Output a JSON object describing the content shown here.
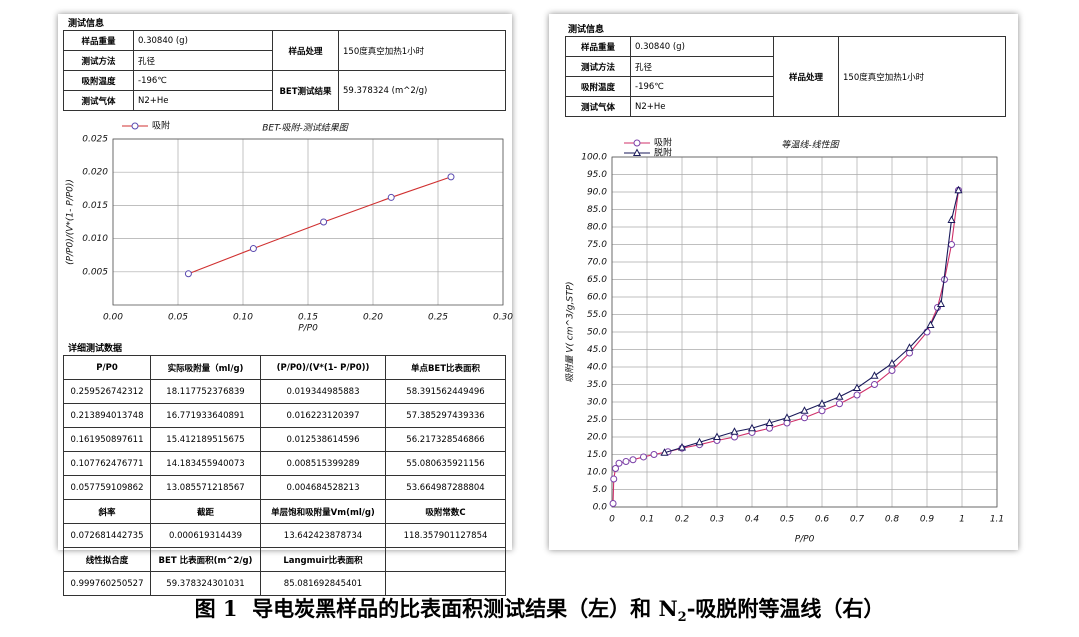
{
  "left_info": {
    "title": "测试信息",
    "rows": [
      [
        "样品重量",
        "0.30840 (g)"
      ],
      [
        "测试方法",
        "孔径"
      ],
      [
        "吸附温度",
        "-196℃"
      ],
      [
        "测试气体",
        "N2+He"
      ]
    ],
    "treatment_label": "样品处理",
    "treatment": "150度真空加热1小时",
    "bet_label": "BET测试结果",
    "bet": "59.378324 (m^2/g)"
  },
  "detail": {
    "title": "详细测试数据",
    "header": [
      "P/P0",
      "实际吸附量（ml/g)",
      "(P/P0)/(V*(1- P/P0))",
      "单点BET比表面积"
    ],
    "rows": [
      [
        "0.259526742312",
        "18.117752376839",
        "0.019344985883",
        "58.391562449496"
      ],
      [
        "0.213894013748",
        "16.771933640891",
        "0.016223120397",
        "57.385297439336"
      ],
      [
        "0.161950897611",
        "15.412189515675",
        "0.012538614596",
        "56.217328546866"
      ],
      [
        "0.107762476771",
        "14.183455940073",
        "0.008515399289",
        "55.080635921156"
      ],
      [
        "0.057759109862",
        "13.085571218567",
        "0.004684528213",
        "53.664987288804"
      ]
    ],
    "summary": [
      [
        "斜率",
        "截距",
        "单层饱和吸附量Vm(ml/g)",
        "吸附常数C"
      ],
      [
        "0.072681442735",
        "0.000619314439",
        "13.642423878734",
        "118.357901127854"
      ],
      [
        "线性拟合度",
        "BET 比表面积(m^2/g)",
        "Langmuir比表面积"
      ],
      [
        "0.999760250527",
        "59.378324301031",
        "85.081692845401"
      ]
    ]
  },
  "right_info": {
    "title": "测试信息",
    "rows": [
      [
        "样品重量",
        "0.30840 (g)"
      ],
      [
        "测试方法",
        "孔径"
      ],
      [
        "吸附温度",
        "-196℃"
      ],
      [
        "测试气体",
        "N2+He"
      ]
    ],
    "treatment_label": "样品处理",
    "treatment": "150度真空加热1小时"
  },
  "chart_data": [
    {
      "type": "line",
      "title": "BET-吸附-测试结果图",
      "xlabel": "P/P0",
      "ylabel": "(P/P0)/(V*(1- P/P0))",
      "xlim": [
        0,
        0.3
      ],
      "ylim": [
        0,
        0.025
      ],
      "xticks": [
        {
          "value": 0,
          "label": "0.00"
        },
        {
          "value": 0.05,
          "label": "0.05"
        },
        {
          "value": 0.1,
          "label": "0.10"
        },
        {
          "value": 0.15,
          "label": "0.15"
        },
        {
          "value": 0.2,
          "label": "0.20"
        },
        {
          "value": 0.25,
          "label": "0.25"
        },
        {
          "value": 0.3,
          "label": "0.30"
        }
      ],
      "yticks": [
        {
          "value": 0.005,
          "label": "0.005"
        },
        {
          "value": 0.01,
          "label": "0.010"
        },
        {
          "value": 0.015,
          "label": "0.015"
        },
        {
          "value": 0.02,
          "label": "0.020"
        },
        {
          "value": 0.025,
          "label": "0.025"
        }
      ],
      "grid": true,
      "series": [
        {
          "name": "吸附",
          "color": "#d03030",
          "marker_color": "#5a4ab0",
          "marker": "circle",
          "x": [
            0.058,
            0.108,
            0.162,
            0.214,
            0.26
          ],
          "values": [
            0.0047,
            0.0085,
            0.0125,
            0.0162,
            0.0193
          ]
        }
      ]
    },
    {
      "type": "line",
      "title": "等温线-线性图",
      "xlabel": "P/P0",
      "ylabel": "吸附量 V( cm^3/g,STP)",
      "xlim": [
        0,
        1.1
      ],
      "ylim": [
        0,
        100
      ],
      "xticks": [
        0,
        0.1,
        0.2,
        0.3,
        0.4,
        0.5,
        0.6,
        0.7,
        0.8,
        0.9,
        1,
        1.1
      ],
      "yticks": [
        {
          "value": 0,
          "label": "0.0"
        },
        {
          "value": 5,
          "label": "5.0"
        },
        {
          "value": 10,
          "label": "10.0"
        },
        {
          "value": 15,
          "label": "15.0"
        },
        {
          "value": 20,
          "label": "20.0"
        },
        {
          "value": 25,
          "label": "25.0"
        },
        {
          "value": 30,
          "label": "30.0"
        },
        {
          "value": 35,
          "label": "35.0"
        },
        {
          "value": 40,
          "label": "40.0"
        },
        {
          "value": 45,
          "label": "45.0"
        },
        {
          "value": 50,
          "label": "50.0"
        },
        {
          "value": 55,
          "label": "55.0"
        },
        {
          "value": 60,
          "label": "60.0"
        },
        {
          "value": 65,
          "label": "65.0"
        },
        {
          "value": 70,
          "label": "70.0"
        },
        {
          "value": 75,
          "label": "75.0"
        },
        {
          "value": 80,
          "label": "80.0"
        },
        {
          "value": 85,
          "label": "85.0"
        },
        {
          "value": 90,
          "label": "90.0"
        },
        {
          "value": 95,
          "label": "95.0"
        },
        {
          "value": 100,
          "label": "100.0"
        }
      ],
      "grid": true,
      "series": [
        {
          "name": "吸附",
          "color": "#d0306a",
          "marker_color": "#7a40a8",
          "marker": "circle",
          "x": [
            0.003,
            0.005,
            0.01,
            0.02,
            0.04,
            0.06,
            0.09,
            0.12,
            0.16,
            0.2,
            0.25,
            0.3,
            0.35,
            0.4,
            0.45,
            0.5,
            0.55,
            0.6,
            0.65,
            0.7,
            0.75,
            0.8,
            0.85,
            0.9,
            0.93,
            0.95,
            0.97,
            0.99
          ],
          "values": [
            1,
            8,
            11,
            12.5,
            13,
            13.5,
            14.3,
            15,
            15.8,
            16.8,
            17.8,
            19,
            20,
            21.3,
            22.5,
            24,
            25.5,
            27.5,
            29.5,
            32,
            35,
            39,
            44,
            50,
            57,
            65,
            75,
            90.5
          ]
        },
        {
          "name": "脱附",
          "color": "#1a1a5a",
          "marker_color": "#1a1a5a",
          "marker": "triangle",
          "x": [
            0.99,
            0.97,
            0.94,
            0.91,
            0.85,
            0.8,
            0.75,
            0.7,
            0.65,
            0.6,
            0.55,
            0.5,
            0.45,
            0.4,
            0.35,
            0.3,
            0.25,
            0.2,
            0.15
          ],
          "values": [
            90.5,
            82,
            58,
            52,
            45.5,
            41,
            37.5,
            34,
            31.5,
            29.5,
            27.5,
            25.5,
            24,
            22.5,
            21.5,
            20,
            18.5,
            17,
            15.5
          ]
        }
      ]
    }
  ],
  "caption": {
    "label": "图 1",
    "text_before": "导电炭黑样品的比表面积测试结果（左）和 N",
    "subscript": "2",
    "text_after": "-吸脱附等温线（右）"
  }
}
